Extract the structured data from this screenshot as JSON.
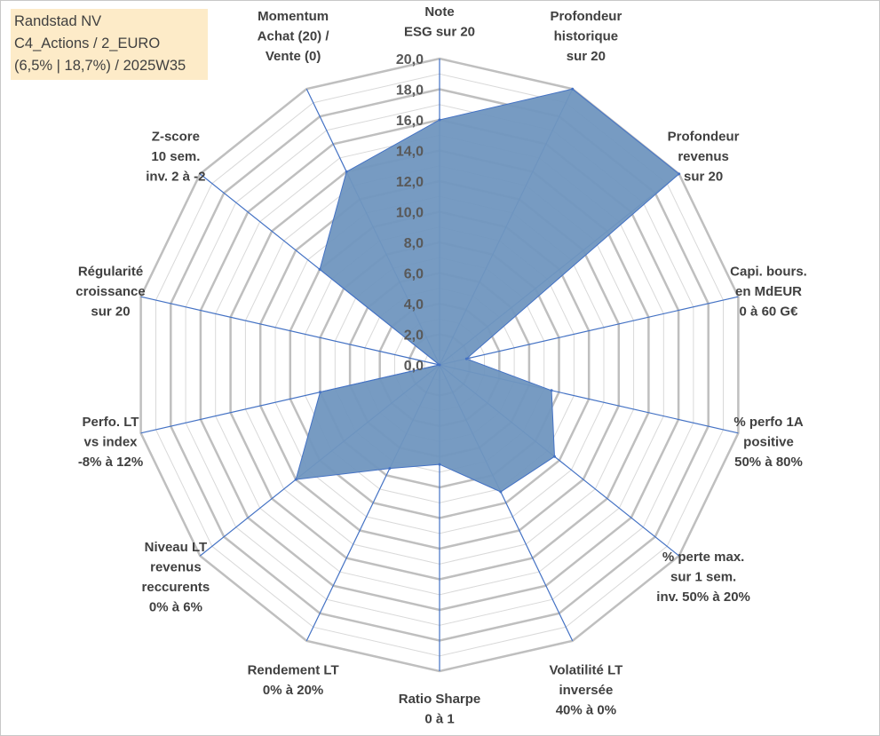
{
  "info_box": {
    "line1": "Randstad NV",
    "line2": "C4_Actions / 2_EURO",
    "line3": "(6,5% | 18,7%) / 2025W35"
  },
  "colors": {
    "fill": "#7096bf",
    "series_line": "#4472c4",
    "spoke": "#4472c4",
    "major_grid": "#bfbfbf",
    "minor_grid": "#d9d9d9",
    "info_box_bg": "#fdebc8"
  },
  "chart_data": {
    "type": "radar",
    "title": "",
    "grid": true,
    "range": [
      0,
      20
    ],
    "major_step": 2,
    "tick_labels": [
      "0,0",
      "2,0",
      "4,0",
      "6,0",
      "8,0",
      "10,0",
      "12,0",
      "14,0",
      "16,0",
      "18,0",
      "20,0"
    ],
    "categories": [
      [
        "Note",
        "ESG sur 20"
      ],
      [
        "Profondeur",
        "historique",
        "sur 20"
      ],
      [
        "Profondeur",
        "revenus",
        "sur 20"
      ],
      [
        "Capi. bours.",
        "en MdEUR",
        "0 à 60 G€"
      ],
      [
        "% perfo 1A",
        "positive",
        "50% à 80%"
      ],
      [
        "% perte max.",
        "sur 1 sem.",
        "inv. 50% à 20%"
      ],
      [
        "Volatilité LT",
        "inversée",
        "40% à 0%"
      ],
      [
        "Ratio Sharpe",
        "0 à 1"
      ],
      [
        "Rendement LT",
        "0% à 20%"
      ],
      [
        "Niveau LT",
        "revenus",
        "reccurents",
        "0% à 6%"
      ],
      [
        "Perfo. LT",
        "vs index",
        "-8% à 12%"
      ],
      [
        "Régularité",
        "croissance",
        "sur 20"
      ],
      [
        "Z-score",
        "10 sem.",
        "inv. 2 à -2"
      ],
      [
        "Momentum",
        "Achat (20) /",
        "Vente (0)"
      ]
    ],
    "values": [
      16.0,
      20.0,
      20.0,
      1.8,
      7.5,
      9.6,
      9.2,
      6.5,
      7.5,
      12.0,
      8.0,
      0.0,
      10.0,
      14.0
    ]
  }
}
